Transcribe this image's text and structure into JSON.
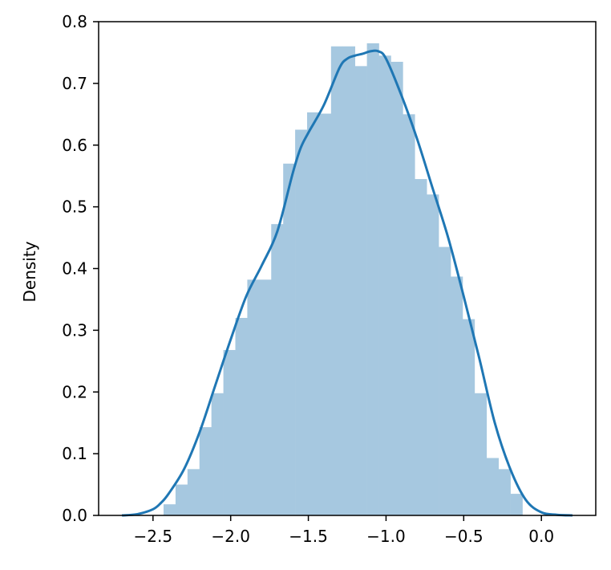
{
  "chart_data": {
    "type": "bar",
    "title": "",
    "xlabel": "",
    "ylabel": "Density",
    "xlim": [
      -2.85,
      0.35
    ],
    "ylim": [
      0.0,
      0.8
    ],
    "grid": false,
    "colors": {
      "bars": "#a6c8e0",
      "kde": "#1f77b4",
      "axes": "#000000"
    },
    "x_ticks": [
      {
        "value": -2.5,
        "label": "−2.5"
      },
      {
        "value": -2.0,
        "label": "−2.0"
      },
      {
        "value": -1.5,
        "label": "−1.5"
      },
      {
        "value": -1.0,
        "label": "−1.0"
      },
      {
        "value": -0.5,
        "label": "−0.5"
      },
      {
        "value": 0.0,
        "label": "0.0"
      }
    ],
    "y_ticks": [
      {
        "value": 0.0,
        "label": "0.0"
      },
      {
        "value": 0.1,
        "label": "0.1"
      },
      {
        "value": 0.2,
        "label": "0.2"
      },
      {
        "value": 0.3,
        "label": "0.3"
      },
      {
        "value": 0.4,
        "label": "0.4"
      },
      {
        "value": 0.5,
        "label": "0.5"
      },
      {
        "value": 0.6,
        "label": "0.6"
      },
      {
        "value": 0.7,
        "label": "0.7"
      },
      {
        "value": 0.8,
        "label": "0.8"
      }
    ],
    "histogram": {
      "bin_edges": [
        -2.432,
        -2.355,
        -2.278,
        -2.201,
        -2.124,
        -2.047,
        -1.97,
        -1.893,
        -1.816,
        -1.739,
        -1.662,
        -1.585,
        -1.508,
        -1.431,
        -1.354,
        -1.277,
        -1.2,
        -1.123,
        -1.046,
        -0.969,
        -0.892,
        -0.815,
        -0.738,
        -0.661,
        -0.584,
        -0.507,
        -0.43,
        -0.353,
        -0.276,
        -0.199,
        -0.122,
        -0.045
      ],
      "densities": [
        0.018,
        0.05,
        0.075,
        0.143,
        0.198,
        0.268,
        0.32,
        0.382,
        0.382,
        0.472,
        0.57,
        0.625,
        0.653,
        0.651,
        0.76,
        0.76,
        0.728,
        0.765,
        0.745,
        0.735,
        0.65,
        0.545,
        0.52,
        0.435,
        0.387,
        0.318,
        0.198,
        0.093,
        0.075,
        0.035,
        0.0
      ]
    },
    "kde": {
      "x": [
        -2.7,
        -2.6,
        -2.5,
        -2.45,
        -2.4,
        -2.3,
        -2.2,
        -2.1,
        -2.0,
        -1.9,
        -1.8,
        -1.7,
        -1.6,
        -1.55,
        -1.5,
        -1.4,
        -1.3,
        -1.25,
        -1.2,
        -1.15,
        -1.1,
        -1.05,
        -1.0,
        -0.9,
        -0.8,
        -0.7,
        -0.6,
        -0.5,
        -0.4,
        -0.3,
        -0.2,
        -0.1,
        0.0,
        0.1,
        0.2
      ],
      "y": [
        0.0,
        0.002,
        0.01,
        0.02,
        0.035,
        0.075,
        0.135,
        0.21,
        0.285,
        0.355,
        0.405,
        0.46,
        0.555,
        0.595,
        0.62,
        0.665,
        0.725,
        0.74,
        0.745,
        0.748,
        0.752,
        0.752,
        0.74,
        0.68,
        0.61,
        0.53,
        0.45,
        0.355,
        0.255,
        0.15,
        0.075,
        0.025,
        0.005,
        0.001,
        0.0
      ]
    }
  }
}
